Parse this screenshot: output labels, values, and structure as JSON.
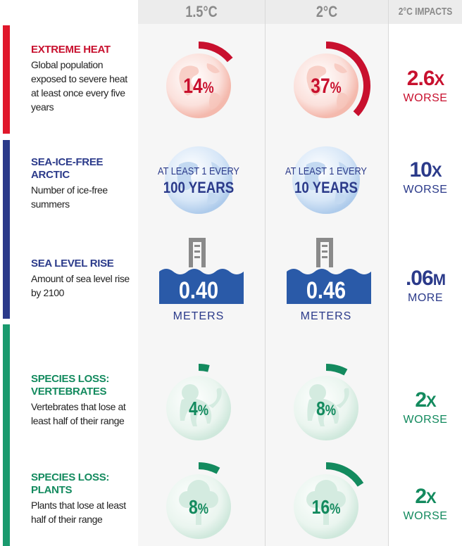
{
  "headers": {
    "col_15": "1.5°C",
    "col_2": "2°C",
    "col_impacts": "2°C IMPACTS"
  },
  "colors": {
    "heat": "#c8102e",
    "ice": "#2b3a8a",
    "species": "#138a5e"
  },
  "rows": {
    "heat": {
      "title": "EXTREME HEAT",
      "desc": "Global population exposed to severe heat at least once every five years",
      "icon": "globe-icon",
      "v15": {
        "value": "14",
        "unit": "%",
        "fraction": 0.14
      },
      "v2": {
        "value": "37",
        "unit": "%",
        "fraction": 0.37
      },
      "impact": {
        "big": "2.6",
        "unit": "X",
        "small": "WORSE"
      }
    },
    "ice": {
      "title": "SEA-ICE-FREE ARCTIC",
      "desc": "Number of ice-free summers",
      "icon": "globe-icon",
      "v15": {
        "line1": "AT LEAST 1 EVERY",
        "line2": "100 YEARS"
      },
      "v2": {
        "line1": "AT LEAST 1 EVERY",
        "line2": "10 YEARS"
      },
      "impact": {
        "big": "10",
        "unit": "X",
        "small": "WORSE"
      }
    },
    "sea": {
      "title": "SEA LEVEL RISE",
      "desc": "Amount of sea level rise by 2100",
      "icon": "tide-gauge-icon",
      "v15": {
        "value": "0.40",
        "unit": "METERS"
      },
      "v2": {
        "value": "0.46",
        "unit": "METERS"
      },
      "impact": {
        "big": ".06",
        "unit": "M",
        "small": "MORE"
      }
    },
    "vert": {
      "title_1": "SPECIES LOSS:",
      "title_2": "VERTEBRATES",
      "desc": "Vertebrates that lose at least half of their range",
      "icon": "monkey-icon",
      "v15": {
        "value": "4",
        "unit": "%",
        "fraction": 0.04
      },
      "v2": {
        "value": "8",
        "unit": "%",
        "fraction": 0.08
      },
      "impact": {
        "big": "2",
        "unit": "X",
        "small": "WORSE"
      }
    },
    "plants": {
      "title_1": "SPECIES LOSS:",
      "title_2": "PLANTS",
      "desc": "Plants that lose at least half of their range",
      "icon": "tree-icon",
      "v15": {
        "value": "8",
        "unit": "%",
        "fraction": 0.08
      },
      "v2": {
        "value": "16",
        "unit": "%",
        "fraction": 0.16
      },
      "impact": {
        "big": "2",
        "unit": "X",
        "small": "WORSE"
      }
    }
  }
}
